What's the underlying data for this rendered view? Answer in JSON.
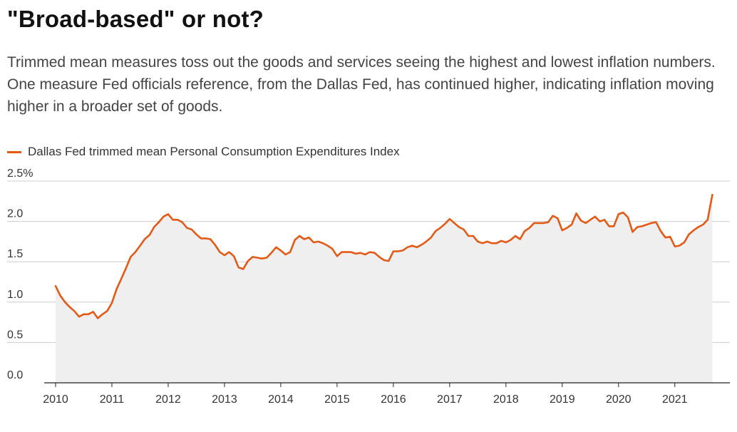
{
  "title": "\"Broad-based\" or not?",
  "subtitle": "Trimmed mean measures toss out the goods and services seeing the highest and lowest inflation numbers. One measure Fed officials reference, from the Dallas Fed, has continued higher, indicating inflation moving higher in a broader set of goods.",
  "colors": {
    "line": "#e35a16",
    "area": "#efefef",
    "grid": "#cccccc",
    "axis": "#222222"
  },
  "chart_data": {
    "type": "line",
    "title": "\"Broad-based\" or not?",
    "xlabel": "",
    "ylabel": "",
    "ylim": [
      0,
      2.5
    ],
    "y_ticks": [
      0,
      0.5,
      1.0,
      1.5,
      2.0,
      2.5
    ],
    "y_tick_labels": [
      "0.0",
      "0.5",
      "1.0",
      "1.5",
      "2.0",
      "2.5%"
    ],
    "x_ticks": [
      2010,
      2011,
      2012,
      2013,
      2014,
      2015,
      2016,
      2017,
      2018,
      2019,
      2020,
      2021
    ],
    "x_tick_labels": [
      "2010",
      "2011",
      "2012",
      "2013",
      "2014",
      "2015",
      "2016",
      "2017",
      "2018",
      "2019",
      "2020",
      "2021"
    ],
    "xlim": [
      2010,
      2021.75
    ],
    "legend": "top-left",
    "grid": true,
    "series": [
      {
        "name": "Dallas Fed trimmed mean Personal Consumption Expenditures Index",
        "x": [
          2010.0,
          2010.083,
          2010.167,
          2010.25,
          2010.333,
          2010.417,
          2010.5,
          2010.583,
          2010.667,
          2010.75,
          2010.833,
          2010.917,
          2011.0,
          2011.083,
          2011.167,
          2011.25,
          2011.333,
          2011.417,
          2011.5,
          2011.583,
          2011.667,
          2011.75,
          2011.833,
          2011.917,
          2012.0,
          2012.083,
          2012.167,
          2012.25,
          2012.333,
          2012.417,
          2012.5,
          2012.583,
          2012.667,
          2012.75,
          2012.833,
          2012.917,
          2013.0,
          2013.083,
          2013.167,
          2013.25,
          2013.333,
          2013.417,
          2013.5,
          2013.583,
          2013.667,
          2013.75,
          2013.833,
          2013.917,
          2014.0,
          2014.083,
          2014.167,
          2014.25,
          2014.333,
          2014.417,
          2014.5,
          2014.583,
          2014.667,
          2014.75,
          2014.833,
          2014.917,
          2015.0,
          2015.083,
          2015.167,
          2015.25,
          2015.333,
          2015.417,
          2015.5,
          2015.583,
          2015.667,
          2015.75,
          2015.833,
          2015.917,
          2016.0,
          2016.083,
          2016.167,
          2016.25,
          2016.333,
          2016.417,
          2016.5,
          2016.583,
          2016.667,
          2016.75,
          2016.833,
          2016.917,
          2017.0,
          2017.083,
          2017.167,
          2017.25,
          2017.333,
          2017.417,
          2017.5,
          2017.583,
          2017.667,
          2017.75,
          2017.833,
          2017.917,
          2018.0,
          2018.083,
          2018.167,
          2018.25,
          2018.333,
          2018.417,
          2018.5,
          2018.583,
          2018.667,
          2018.75,
          2018.833,
          2018.917,
          2019.0,
          2019.083,
          2019.167,
          2019.25,
          2019.333,
          2019.417,
          2019.5,
          2019.583,
          2019.667,
          2019.75,
          2019.833,
          2019.917,
          2020.0,
          2020.083,
          2020.167,
          2020.25,
          2020.333,
          2020.417,
          2020.5,
          2020.583,
          2020.667,
          2020.75,
          2020.833,
          2020.917,
          2021.0,
          2021.083,
          2021.167,
          2021.25,
          2021.333,
          2021.417,
          2021.5,
          2021.583,
          2021.667
        ],
        "values": [
          1.2,
          1.08,
          1.0,
          0.94,
          0.89,
          0.82,
          0.85,
          0.85,
          0.88,
          0.8,
          0.85,
          0.89,
          0.99,
          1.16,
          1.29,
          1.42,
          1.56,
          1.62,
          1.7,
          1.78,
          1.83,
          1.93,
          1.99,
          2.06,
          2.09,
          2.02,
          2.02,
          1.99,
          1.92,
          1.9,
          1.84,
          1.79,
          1.79,
          1.78,
          1.71,
          1.62,
          1.58,
          1.62,
          1.57,
          1.43,
          1.41,
          1.51,
          1.56,
          1.55,
          1.54,
          1.55,
          1.61,
          1.68,
          1.64,
          1.59,
          1.62,
          1.77,
          1.82,
          1.78,
          1.8,
          1.74,
          1.75,
          1.73,
          1.7,
          1.66,
          1.57,
          1.62,
          1.62,
          1.62,
          1.6,
          1.61,
          1.59,
          1.62,
          1.61,
          1.56,
          1.52,
          1.51,
          1.63,
          1.63,
          1.64,
          1.68,
          1.7,
          1.68,
          1.71,
          1.75,
          1.8,
          1.88,
          1.92,
          1.97,
          2.03,
          1.98,
          1.93,
          1.9,
          1.82,
          1.82,
          1.75,
          1.73,
          1.75,
          1.73,
          1.73,
          1.76,
          1.74,
          1.77,
          1.82,
          1.78,
          1.88,
          1.92,
          1.98,
          1.98,
          1.98,
          1.99,
          2.07,
          2.04,
          1.89,
          1.92,
          1.96,
          2.1,
          2.01,
          1.98,
          2.02,
          2.06,
          2.0,
          2.02,
          1.94,
          1.94,
          2.09,
          2.11,
          2.05,
          1.87,
          1.93,
          1.94,
          1.96,
          1.98,
          1.99,
          1.88,
          1.8,
          1.81,
          1.69,
          1.7,
          1.74,
          1.84,
          1.89,
          1.93,
          1.96,
          2.02,
          2.33
        ]
      }
    ]
  }
}
